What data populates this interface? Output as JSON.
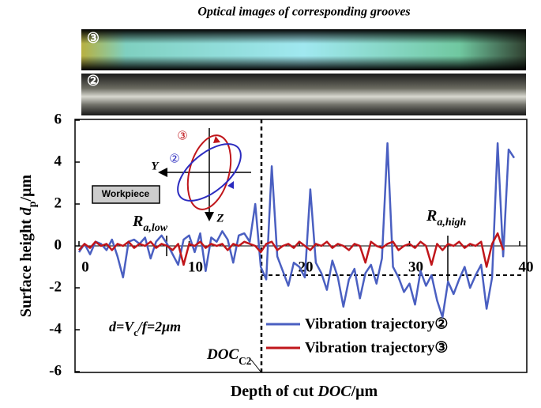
{
  "chart_data": {
    "type": "line",
    "title": "Optical images of corresponding grooves",
    "images": [
      {
        "label": "③"
      },
      {
        "label": "②"
      }
    ],
    "x_label": {
      "text": "Depth of cut ",
      "italic": "DOC",
      "tail": "/μm"
    },
    "y_label": {
      "text": "Surface height ",
      "italic": "d",
      "sub": "p",
      "tail": "/μm"
    },
    "xlim": [
      0,
      40
    ],
    "ylim": [
      -6,
      6
    ],
    "xticks": [
      0,
      10,
      20,
      30,
      40
    ],
    "yticks": [
      -6,
      -4,
      -2,
      0,
      2,
      4,
      6
    ],
    "x": [
      0,
      0.5,
      1,
      1.5,
      2,
      2.5,
      3,
      3.5,
      4,
      4.5,
      5,
      5.5,
      6,
      6.5,
      7,
      7.5,
      8,
      8.5,
      9,
      9.5,
      10,
      10.5,
      11,
      11.5,
      12,
      12.5,
      13,
      13.5,
      14,
      14.5,
      15,
      15.5,
      16,
      16.5,
      17,
      17.5,
      18,
      18.5,
      19,
      19.5,
      20,
      20.5,
      21,
      21.5,
      22,
      22.5,
      23,
      23.5,
      24,
      24.5,
      25,
      25.5,
      26,
      26.5,
      27,
      27.5,
      28,
      28.5,
      29,
      29.5,
      30,
      30.5,
      31,
      31.5,
      32,
      32.5,
      33,
      33.5,
      34,
      34.5,
      35,
      35.5,
      36,
      36.5,
      37,
      37.5,
      38,
      38.5,
      39,
      39.5
    ],
    "series": [
      {
        "name": "Vibration trajectory②",
        "color": "#4a5fc1",
        "values": [
          -0.3,
          0.1,
          -0.4,
          0.2,
          0.1,
          -0.2,
          0.3,
          -0.5,
          -1.5,
          0.2,
          0.3,
          0.1,
          0.4,
          -0.6,
          0.2,
          0.5,
          0.1,
          -0.4,
          -0.9,
          0.3,
          0.5,
          -0.3,
          0.6,
          -1.2,
          0.4,
          0.2,
          0.7,
          0.3,
          -0.8,
          0.5,
          0.6,
          0.2,
          2.0,
          -1.0,
          -1.6,
          3.8,
          -0.5,
          -1.2,
          -1.9,
          -0.8,
          -1.0,
          -1.5,
          2.7,
          -0.8,
          -1.3,
          -2.1,
          -0.7,
          -1.5,
          -2.9,
          -1.6,
          -1.1,
          -2.5,
          -1.3,
          -0.9,
          -1.8,
          -0.6,
          4.9,
          -1.0,
          -1.5,
          -2.2,
          -1.8,
          -2.8,
          -1.2,
          -1.9,
          -1.4,
          -2.6,
          -3.4,
          -1.7,
          -2.3,
          -1.6,
          -1.0,
          -2.0,
          -1.4,
          -0.9,
          -3.0,
          -1.5,
          4.9,
          -0.5,
          4.6,
          4.2
        ]
      },
      {
        "name": "Vibration trajectory③",
        "color": "#c0161b",
        "values": [
          -0.2,
          0.1,
          -0.1,
          0.2,
          0.0,
          0.1,
          -0.2,
          0.1,
          0.0,
          0.2,
          -0.1,
          0.1,
          0.0,
          0.2,
          -0.1,
          0.1,
          0.0,
          -0.2,
          0.1,
          -0.9,
          0.1,
          0.0,
          0.2,
          -0.1,
          0.1,
          0.0,
          0.1,
          -0.2,
          0.1,
          0.0,
          0.2,
          0.1,
          0.0,
          -0.3,
          0.1,
          0.2,
          -0.2,
          0.0,
          0.1,
          -0.1,
          0.2,
          0.0,
          -0.2,
          0.1,
          0.0,
          0.2,
          -0.1,
          0.1,
          0.0,
          -0.2,
          0.1,
          0.0,
          -0.8,
          0.2,
          0.0,
          -0.1,
          0.1,
          0.2,
          -0.2,
          0.0,
          0.1,
          -0.1,
          0.2,
          0.0,
          -0.9,
          0.1,
          -0.2,
          0.1,
          0.0,
          0.2,
          -0.1,
          0.1,
          0.0,
          0.2,
          -1.0,
          0.1,
          0.6,
          -0.2,
          null,
          null
        ]
      }
    ],
    "annotations": [
      {
        "text": "R",
        "sub": "a,low"
      },
      {
        "text": "R",
        "sub": "a,high"
      },
      {
        "text": "d=V",
        "sub": "c",
        "tail": "/f=2μm"
      },
      {
        "text": "DOC",
        "sub": "C2"
      }
    ],
    "inset": {
      "labels": [
        "③",
        "②",
        "Y",
        "Z"
      ],
      "workpiece": "Workpiece"
    }
  }
}
